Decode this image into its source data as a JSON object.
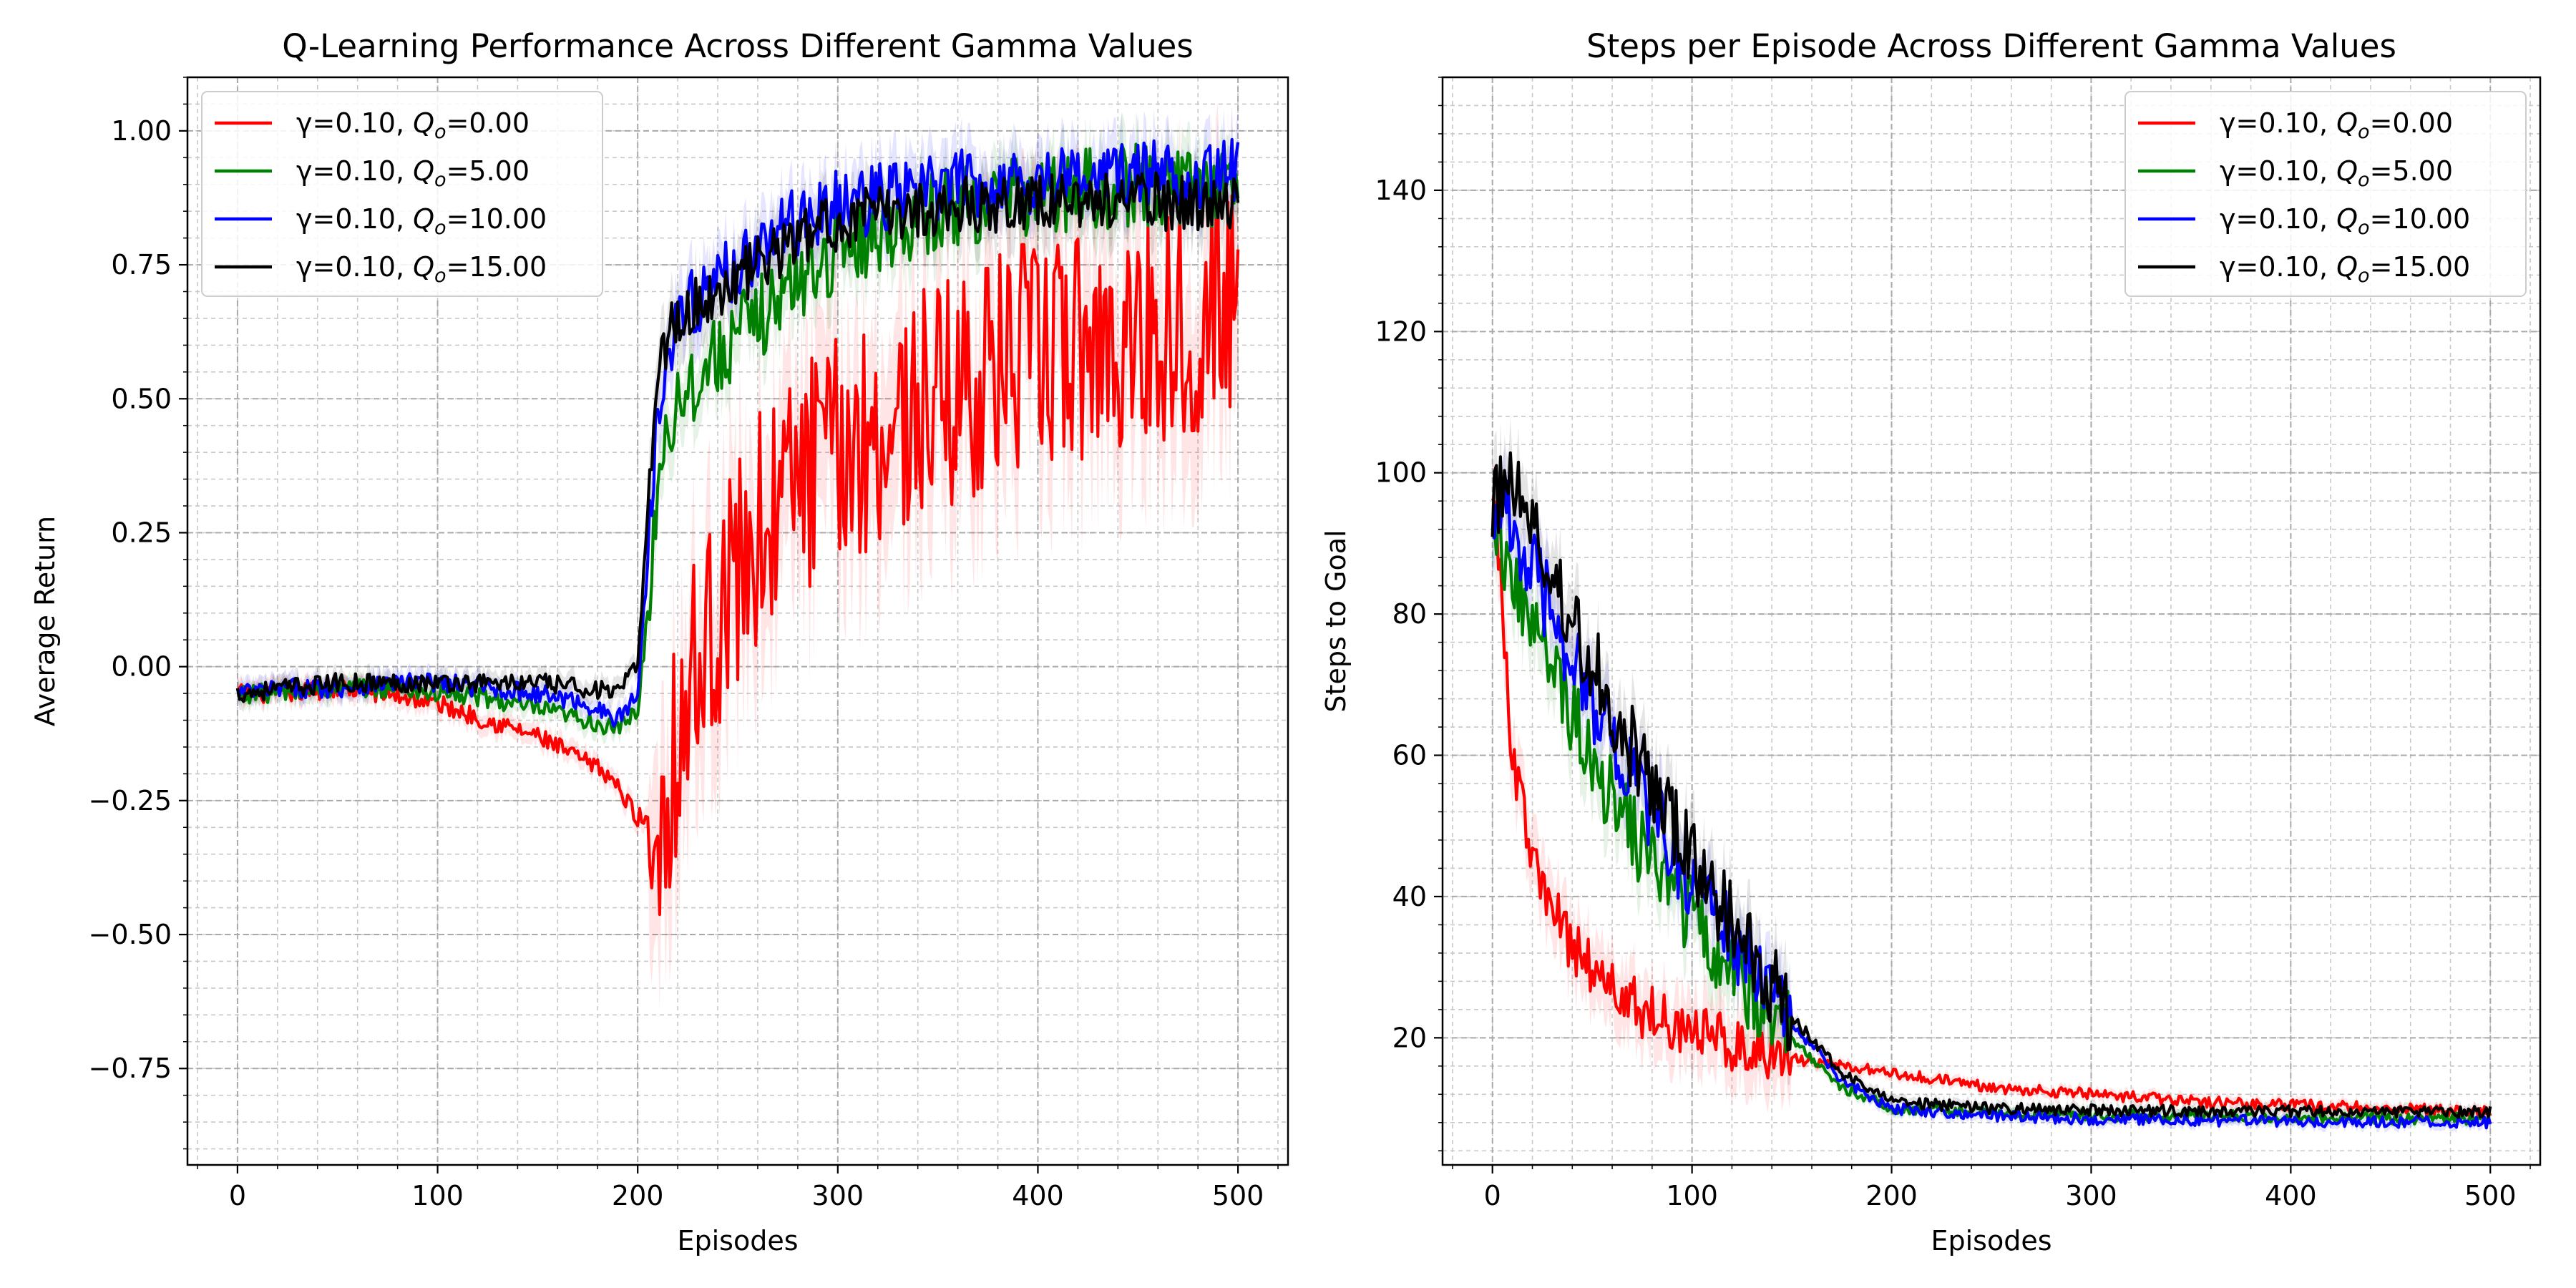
{
  "figure": {
    "background": "#ffffff"
  },
  "chart_data": [
    {
      "type": "line",
      "title": "Q-Learning Performance Across Different Gamma Values",
      "xlabel": "Episodes",
      "ylabel": "Average Return",
      "xlim": [
        -25,
        525
      ],
      "ylim": [
        -0.93,
        1.1
      ],
      "xticks": [
        0,
        100,
        200,
        300,
        400,
        500
      ],
      "xtick_labels": [
        "0",
        "100",
        "200",
        "300",
        "400",
        "500"
      ],
      "yticks": [
        -0.75,
        -0.5,
        -0.25,
        0.0,
        0.25,
        0.5,
        0.75,
        1.0
      ],
      "ytick_labels": [
        "−0.75",
        "−0.50",
        "−0.25",
        "0.00",
        "0.25",
        "0.50",
        "0.75",
        "1.00"
      ],
      "grid": true,
      "minor_grid": true,
      "legend_position": "upper left",
      "shaded_band": true,
      "series": [
        {
          "name": "γ=0.10, Q₀=0.00",
          "legend_prefix": "γ=0.10, ",
          "legend_q": "Q",
          "legend_sub": "o",
          "legend_suffix": "=0.00",
          "color": "#ff0000",
          "x": [
            0,
            25,
            50,
            75,
            100,
            125,
            150,
            175,
            185,
            200,
            210,
            215,
            225,
            240,
            260,
            280,
            300,
            325,
            350,
            375,
            400,
            425,
            450,
            475,
            500
          ],
          "y": [
            -0.05,
            -0.05,
            -0.04,
            -0.05,
            -0.07,
            -0.1,
            -0.13,
            -0.18,
            -0.2,
            -0.28,
            -0.3,
            -0.22,
            -0.05,
            0.1,
            0.25,
            0.35,
            0.4,
            0.45,
            0.5,
            0.55,
            0.58,
            0.6,
            0.62,
            0.65,
            0.68
          ]
        },
        {
          "name": "γ=0.10, Q₀=5.00",
          "legend_prefix": "γ=0.10, ",
          "legend_q": "Q",
          "legend_sub": "o",
          "legend_suffix": "=5.00",
          "color": "#008000",
          "x": [
            0,
            25,
            50,
            75,
            100,
            125,
            150,
            175,
            190,
            200,
            205,
            210,
            215,
            220,
            240,
            260,
            280,
            300,
            330,
            360,
            400,
            450,
            500
          ],
          "y": [
            -0.05,
            -0.05,
            -0.04,
            -0.04,
            -0.05,
            -0.06,
            -0.08,
            -0.1,
            -0.12,
            -0.08,
            0.1,
            0.35,
            0.45,
            0.5,
            0.58,
            0.65,
            0.72,
            0.78,
            0.83,
            0.86,
            0.88,
            0.9,
            0.9
          ]
        },
        {
          "name": "γ=0.10, Q₀=10.00",
          "legend_prefix": "γ=0.10, ",
          "legend_q": "Q",
          "legend_sub": "o",
          "legend_suffix": "=10.00",
          "color": "#0000ff",
          "x": [
            0,
            25,
            50,
            75,
            100,
            125,
            150,
            175,
            190,
            200,
            205,
            210,
            215,
            220,
            240,
            260,
            280,
            300,
            330,
            360,
            400,
            450,
            500
          ],
          "y": [
            -0.05,
            -0.04,
            -0.04,
            -0.03,
            -0.03,
            -0.04,
            -0.05,
            -0.07,
            -0.1,
            -0.05,
            0.2,
            0.5,
            0.6,
            0.65,
            0.72,
            0.78,
            0.83,
            0.86,
            0.88,
            0.9,
            0.91,
            0.92,
            0.92
          ]
        },
        {
          "name": "γ=0.10, Q₀=15.00",
          "legend_prefix": "γ=0.10, ",
          "legend_q": "Q",
          "legend_sub": "o",
          "legend_suffix": "=15.00",
          "color": "#000000",
          "x": [
            0,
            25,
            50,
            75,
            100,
            125,
            150,
            175,
            190,
            200,
            205,
            210,
            215,
            220,
            240,
            260,
            280,
            300,
            330,
            360,
            400,
            450,
            500
          ],
          "y": [
            -0.05,
            -0.04,
            -0.03,
            -0.03,
            -0.03,
            -0.03,
            -0.03,
            -0.04,
            -0.05,
            0.0,
            0.3,
            0.55,
            0.62,
            0.65,
            0.7,
            0.75,
            0.8,
            0.83,
            0.85,
            0.86,
            0.87,
            0.87,
            0.86
          ]
        }
      ]
    },
    {
      "type": "line",
      "title": "Steps per Episode Across Different Gamma Values",
      "xlabel": "Episodes",
      "ylabel": "Steps to Goal",
      "xlim": [
        -25,
        525
      ],
      "ylim": [
        2,
        156
      ],
      "xticks": [
        0,
        100,
        200,
        300,
        400,
        500
      ],
      "xtick_labels": [
        "0",
        "100",
        "200",
        "300",
        "400",
        "500"
      ],
      "yticks": [
        20,
        40,
        60,
        80,
        100,
        120,
        140
      ],
      "ytick_labels": [
        "20",
        "40",
        "60",
        "80",
        "100",
        "120",
        "140"
      ],
      "grid": true,
      "minor_grid": true,
      "legend_position": "upper right",
      "shaded_band": true,
      "series": [
        {
          "name": "γ=0.10, Q₀=0.00",
          "legend_prefix": "γ=0.10,  ",
          "legend_q": "Q",
          "legend_sub": "o",
          "legend_suffix": "=0.00",
          "color": "#ff0000",
          "x": [
            0,
            5,
            10,
            20,
            30,
            40,
            50,
            60,
            75,
            100,
            125,
            150,
            175,
            200,
            250,
            300,
            350,
            400,
            450,
            500
          ],
          "y": [
            100,
            80,
            60,
            45,
            38,
            33,
            30,
            27,
            24,
            21,
            19,
            17,
            16,
            15,
            13,
            12,
            11,
            10.5,
            10,
            9.5
          ]
        },
        {
          "name": "γ=0.10, Q₀=5.00",
          "legend_prefix": "γ=0.10,  ",
          "legend_q": "Q",
          "legend_sub": "o",
          "legend_suffix": "=5.00",
          "color": "#008000",
          "x": [
            0,
            5,
            10,
            20,
            30,
            40,
            50,
            60,
            75,
            100,
            125,
            150,
            175,
            200,
            250,
            300,
            350,
            400,
            450,
            500
          ],
          "y": [
            96,
            90,
            85,
            78,
            72,
            66,
            60,
            54,
            47,
            37,
            28,
            20,
            13,
            10,
            9.5,
            9,
            9,
            8.8,
            8.6,
            8.5
          ]
        },
        {
          "name": "γ=0.10, Q₀=10.00",
          "legend_prefix": "γ=0.10,  ",
          "legend_q": "Q",
          "legend_sub": "o",
          "legend_suffix": "=10.00",
          "color": "#0000ff",
          "x": [
            0,
            5,
            10,
            20,
            30,
            40,
            50,
            60,
            75,
            100,
            125,
            150,
            175,
            200,
            250,
            300,
            350,
            400,
            450,
            500
          ],
          "y": [
            96,
            95,
            92,
            86,
            80,
            74,
            68,
            62,
            54,
            42,
            32,
            22,
            14,
            10,
            9,
            8.5,
            8.3,
            8.2,
            8.1,
            8
          ]
        },
        {
          "name": "γ=0.10, Q₀=15.00",
          "legend_prefix": "γ=0.10,  ",
          "legend_q": "Q",
          "legend_sub": "o",
          "legend_suffix": "=15.00",
          "color": "#000000",
          "x": [
            0,
            5,
            10,
            20,
            30,
            40,
            50,
            60,
            75,
            100,
            125,
            150,
            175,
            200,
            250,
            300,
            350,
            400,
            450,
            500
          ],
          "y": [
            95,
            98,
            100,
            92,
            85,
            79,
            73,
            67,
            58,
            45,
            34,
            23,
            15,
            11,
            10,
            9.8,
            9.6,
            9.6,
            9.5,
            9.5
          ]
        }
      ]
    }
  ]
}
